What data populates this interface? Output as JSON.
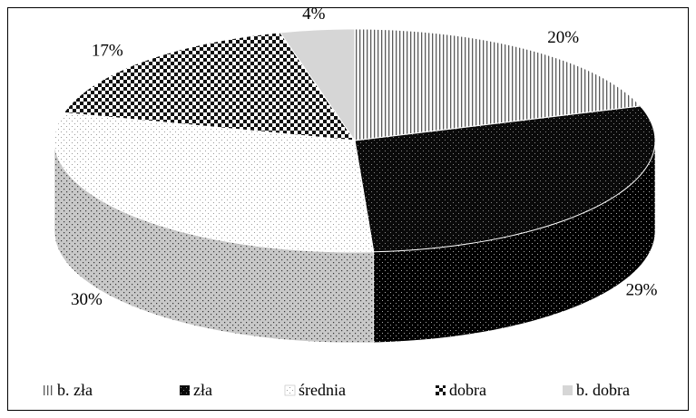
{
  "chart_data": {
    "type": "pie",
    "title": "",
    "categories": [
      "b. zła",
      "zła",
      "średnia",
      "dobra",
      "b. dobra"
    ],
    "values": [
      20,
      29,
      30,
      17,
      4
    ],
    "value_labels": [
      "20%",
      "29%",
      "30%",
      "17%",
      "4%"
    ],
    "style": "3d",
    "legend": "bottom",
    "slice_fills": [
      "vertical-lines",
      "black-dotted",
      "white-dotted",
      "checkerboard",
      "light-gray"
    ]
  }
}
